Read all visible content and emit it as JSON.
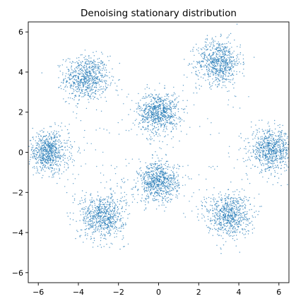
{
  "chart_data": {
    "type": "scatter",
    "title": "Denoising stationary distribution",
    "xlabel": "",
    "ylabel": "",
    "xlim": [
      -6.5,
      6.5
    ],
    "ylim": [
      -6.5,
      6.5
    ],
    "xticks": [
      -6,
      -4,
      -2,
      0,
      2,
      4,
      6
    ],
    "yticks": [
      -6,
      -4,
      -2,
      0,
      2,
      4,
      6
    ],
    "xtick_labels": [
      "−6",
      "−4",
      "−2",
      "0",
      "2",
      "4",
      "6"
    ],
    "ytick_labels": [
      "−6",
      "−4",
      "−2",
      "0",
      "2",
      "4",
      "6"
    ],
    "grid": false,
    "point_color": "#1f77b4",
    "series": [
      {
        "clusters": [
          {
            "center": [
              -3.6,
              3.7
            ],
            "spread": 0.55
          },
          {
            "center": [
              3.0,
              4.5
            ],
            "spread": 0.55
          },
          {
            "center": [
              0.0,
              2.0
            ],
            "spread": 0.5
          },
          {
            "center": [
              -5.5,
              0.0
            ],
            "spread": 0.5
          },
          {
            "center": [
              5.6,
              0.1
            ],
            "spread": 0.5
          },
          {
            "center": [
              0.0,
              -1.5
            ],
            "spread": 0.5
          },
          {
            "center": [
              -2.8,
              -3.2
            ],
            "spread": 0.55
          },
          {
            "center": [
              3.5,
              -3.1
            ],
            "spread": 0.55
          }
        ]
      }
    ]
  }
}
